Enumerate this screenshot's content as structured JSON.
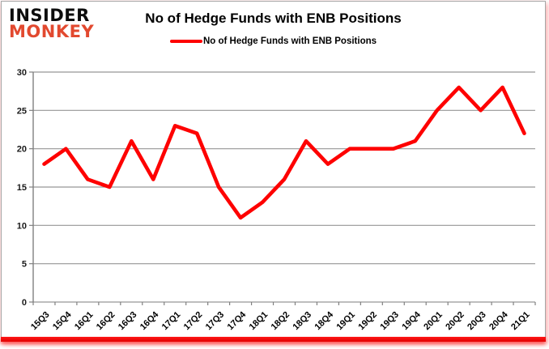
{
  "logo": {
    "line1": "INSIDER",
    "line2": "MONKEY"
  },
  "header": {
    "title": "No of Hedge Funds with ENB Positions"
  },
  "legend": {
    "label": "No of Hedge Funds with ENB Positions"
  },
  "colors": {
    "line": "#fe0000",
    "grid": "#969696",
    "axis": "#808080",
    "logo_accent": "#e2492f",
    "bottom_bar": "#ee0000"
  },
  "chart_data": {
    "type": "line",
    "title": "No of Hedge Funds with ENB Positions",
    "legend": "No of Hedge Funds with ENB Positions",
    "categories": [
      "15Q3",
      "15Q4",
      "16Q1",
      "16Q2",
      "16Q3",
      "16Q4",
      "17Q1",
      "17Q2",
      "17Q3",
      "17Q4",
      "18Q1",
      "18Q2",
      "18Q3",
      "18Q4",
      "19Q1",
      "19Q2",
      "19Q3",
      "19Q4",
      "20Q1",
      "20Q2",
      "20Q3",
      "20Q4",
      "21Q1"
    ],
    "values": [
      18,
      20,
      16,
      15,
      21,
      16,
      23,
      22,
      15,
      11,
      13,
      16,
      21,
      18,
      20,
      20,
      20,
      21,
      25,
      28,
      25,
      28,
      22
    ],
    "xlabel": "",
    "ylabel": "",
    "ylim": [
      0,
      30
    ],
    "ytick_step": 5,
    "grid": "horizontal",
    "legend_position": "top-center"
  }
}
